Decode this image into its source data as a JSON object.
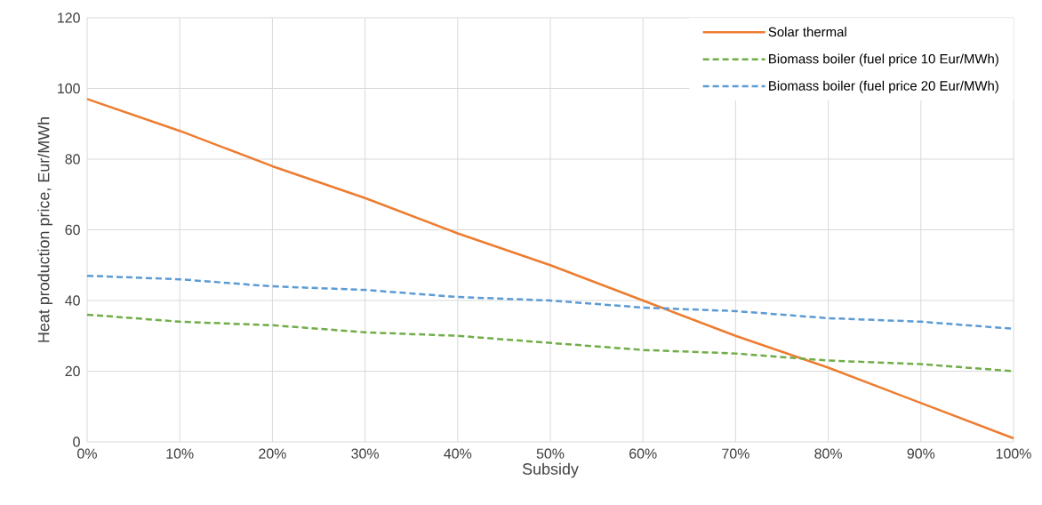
{
  "chart_data": {
    "type": "line",
    "xlabel": "Subsidy",
    "ylabel": "Heat production price, Eur/MWh",
    "x": [
      0,
      10,
      20,
      30,
      40,
      50,
      60,
      70,
      80,
      90,
      100
    ],
    "series": [
      {
        "name": "Solar thermal",
        "color": "#ed7d31",
        "line_style": "solid",
        "values": [
          97,
          88,
          78,
          69,
          59,
          50,
          40,
          30,
          21,
          11,
          1
        ]
      },
      {
        "name": "Biomass boiler (fuel price 10 Eur/MWh)",
        "color": "#70ad47",
        "line_style": "dashed",
        "values": [
          36,
          34,
          33,
          31,
          30,
          28,
          26,
          25,
          23,
          22,
          20
        ]
      },
      {
        "name": "Biomass boiler (fuel price 20 Eur/MWh)",
        "color": "#5b9bd5",
        "line_style": "dashed",
        "values": [
          47,
          46,
          44,
          43,
          41,
          40,
          38,
          37,
          35,
          34,
          32
        ]
      }
    ],
    "xlim": [
      0,
      100
    ],
    "xticks": [
      {
        "value": 0,
        "label": "0%"
      },
      {
        "value": 10,
        "label": "10%"
      },
      {
        "value": 20,
        "label": "20%"
      },
      {
        "value": 30,
        "label": "30%"
      },
      {
        "value": 40,
        "label": "40%"
      },
      {
        "value": 50,
        "label": "50%"
      },
      {
        "value": 60,
        "label": "60%"
      },
      {
        "value": 70,
        "label": "70%"
      },
      {
        "value": 80,
        "label": "80%"
      },
      {
        "value": 90,
        "label": "90%"
      },
      {
        "value": 100,
        "label": "100%"
      }
    ],
    "ylim": [
      0,
      120
    ],
    "yticks": [
      0,
      20,
      40,
      60,
      80,
      100,
      120
    ],
    "grid": true,
    "legend": "top right",
    "marker": "none"
  }
}
